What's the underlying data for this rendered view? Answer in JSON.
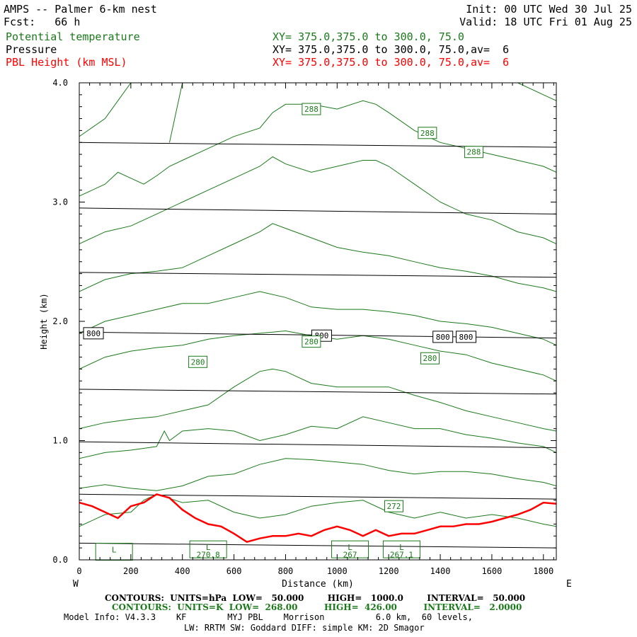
{
  "header": {
    "title_left": "AMPS -- Palmer 6-km nest",
    "fcst": "Fcst:   66 h",
    "init": "Init: 00 UTC Wed 30 Jul 25",
    "valid": "Valid: 18 UTC Fri 01 Aug 25",
    "field1_name": "Potential temperature",
    "field1_xy": "XY= 375.0,375.0 to 300.0, 75.0",
    "field2_name": "Pressure",
    "field2_xy": "XY= 375.0,375.0 to 300.0, 75.0,av=  6",
    "field3_name": "PBL Height (km MSL)",
    "field3_xy": "XY= 375.0,375.0 to 300.0, 75.0,av=  6"
  },
  "colors": {
    "theta": "#1a7a1a",
    "pressure": "#000000",
    "pbl": "#ff0000"
  },
  "chart_data": {
    "type": "line",
    "xlabel": "Distance (km)",
    "ylabel": "Height (km)",
    "xlim": [
      0,
      1850
    ],
    "ylim": [
      0,
      4.0
    ],
    "x_ticks": [
      "0",
      "200",
      "400",
      "600",
      "800",
      "1000",
      "1200",
      "1400",
      "1600",
      "1800"
    ],
    "y_ticks": [
      "0.0",
      "1.0",
      "2.0",
      "3.0",
      "4.0"
    ],
    "x_tick_values": [
      0,
      200,
      400,
      600,
      800,
      1000,
      1200,
      1400,
      1600,
      1800
    ],
    "y_tick_values": [
      0,
      1,
      2,
      3,
      4
    ],
    "left_end": "W",
    "right_end": "E",
    "pressure_lines": [
      {
        "x": [
          0,
          1850
        ],
        "y": [
          3.5,
          3.46
        ]
      },
      {
        "x": [
          0,
          1850
        ],
        "y": [
          2.95,
          2.9
        ]
      },
      {
        "x": [
          0,
          1850
        ],
        "y": [
          2.41,
          2.37
        ]
      },
      {
        "x": [
          0,
          1850
        ],
        "y": [
          1.91,
          1.86
        ]
      },
      {
        "x": [
          0,
          1850
        ],
        "y": [
          1.43,
          1.39
        ]
      },
      {
        "x": [
          0,
          1850
        ],
        "y": [
          0.99,
          0.94
        ]
      },
      {
        "x": [
          0,
          1850
        ],
        "y": [
          0.55,
          0.51
        ]
      },
      {
        "x": [
          0,
          1850
        ],
        "y": [
          0.14,
          0.1
        ]
      }
    ],
    "theta_lines": [
      {
        "x": [
          0,
          100,
          200,
          250,
          300,
          400,
          500,
          600,
          700,
          800,
          900,
          1000,
          1100,
          1200,
          1300,
          1400,
          1500,
          1600,
          1700,
          1800,
          1850
        ],
        "y": [
          0.28,
          0.38,
          0.4,
          0.5,
          0.55,
          0.48,
          0.5,
          0.4,
          0.35,
          0.38,
          0.45,
          0.48,
          0.5,
          0.4,
          0.35,
          0.4,
          0.35,
          0.38,
          0.35,
          0.3,
          0.28
        ]
      },
      {
        "x": [
          0,
          100,
          200,
          300,
          400,
          500,
          600,
          700,
          800,
          900,
          1000,
          1100,
          1200,
          1300,
          1400,
          1500,
          1600,
          1700,
          1800,
          1850
        ],
        "y": [
          0.6,
          0.63,
          0.6,
          0.58,
          0.62,
          0.7,
          0.72,
          0.8,
          0.85,
          0.84,
          0.82,
          0.8,
          0.75,
          0.72,
          0.74,
          0.74,
          0.72,
          0.68,
          0.65,
          0.62
        ]
      },
      {
        "x": [
          0,
          100,
          200,
          300,
          330,
          350,
          400,
          500,
          600,
          700,
          800,
          900,
          1000,
          1100,
          1200,
          1300,
          1400,
          1500,
          1600,
          1700,
          1800,
          1850
        ],
        "y": [
          0.85,
          0.9,
          0.92,
          0.95,
          1.08,
          1.0,
          1.08,
          1.1,
          1.08,
          1.0,
          1.05,
          1.12,
          1.1,
          1.2,
          1.15,
          1.1,
          1.1,
          1.05,
          1.02,
          0.98,
          0.95,
          0.9
        ]
      },
      {
        "x": [
          0,
          100,
          200,
          300,
          400,
          500,
          600,
          700,
          750,
          800,
          900,
          1000,
          1100,
          1200,
          1300,
          1400,
          1500,
          1600,
          1700,
          1800,
          1850
        ],
        "y": [
          1.1,
          1.15,
          1.18,
          1.2,
          1.25,
          1.3,
          1.45,
          1.58,
          1.6,
          1.58,
          1.48,
          1.45,
          1.45,
          1.45,
          1.38,
          1.32,
          1.25,
          1.2,
          1.15,
          1.1,
          1.08
        ]
      },
      {
        "x": [
          0,
          100,
          200,
          300,
          400,
          500,
          600,
          700,
          800,
          900,
          1000,
          1100,
          1200,
          1300,
          1400,
          1500,
          1600,
          1700,
          1800,
          1850
        ],
        "y": [
          1.6,
          1.7,
          1.75,
          1.78,
          1.8,
          1.85,
          1.88,
          1.9,
          1.92,
          1.88,
          1.85,
          1.88,
          1.85,
          1.8,
          1.75,
          1.72,
          1.65,
          1.6,
          1.55,
          1.5
        ]
      },
      {
        "x": [
          0,
          100,
          200,
          300,
          400,
          500,
          600,
          700,
          800,
          900,
          1000,
          1100,
          1200,
          1300,
          1400,
          1500,
          1600,
          1700,
          1800,
          1850
        ],
        "y": [
          1.9,
          2.0,
          2.05,
          2.1,
          2.15,
          2.15,
          2.2,
          2.25,
          2.2,
          2.12,
          2.1,
          2.1,
          2.08,
          2.05,
          2.0,
          1.98,
          1.95,
          1.9,
          1.85,
          1.8
        ]
      },
      {
        "x": [
          0,
          100,
          200,
          300,
          400,
          500,
          600,
          700,
          750,
          800,
          900,
          1000,
          1100,
          1200,
          1300,
          1400,
          1500,
          1600,
          1700,
          1800,
          1850
        ],
        "y": [
          2.25,
          2.35,
          2.4,
          2.42,
          2.45,
          2.55,
          2.65,
          2.75,
          2.82,
          2.78,
          2.7,
          2.62,
          2.58,
          2.55,
          2.5,
          2.45,
          2.42,
          2.38,
          2.32,
          2.28,
          2.25
        ]
      },
      {
        "x": [
          0,
          100,
          200,
          300,
          400,
          500,
          600,
          700,
          750,
          800,
          900,
          1000,
          1100,
          1150,
          1200,
          1300,
          1400,
          1500,
          1600,
          1700,
          1800,
          1850
        ],
        "y": [
          2.65,
          2.75,
          2.8,
          2.9,
          3.0,
          3.1,
          3.2,
          3.3,
          3.38,
          3.32,
          3.25,
          3.3,
          3.35,
          3.35,
          3.3,
          3.15,
          3.0,
          2.9,
          2.85,
          2.75,
          2.7,
          2.65
        ]
      },
      {
        "x": [
          0,
          100,
          150,
          200,
          250,
          300,
          350,
          400,
          500,
          600,
          700,
          750,
          800,
          900,
          1000,
          1100,
          1150,
          1200,
          1300,
          1400,
          1500,
          1600,
          1700,
          1800,
          1850
        ],
        "y": [
          3.05,
          3.15,
          3.25,
          3.2,
          3.15,
          3.22,
          3.3,
          3.35,
          3.45,
          3.55,
          3.62,
          3.75,
          3.82,
          3.82,
          3.78,
          3.85,
          3.82,
          3.75,
          3.6,
          3.5,
          3.45,
          3.4,
          3.35,
          3.3,
          3.25
        ]
      },
      {
        "x": [
          0,
          100,
          150,
          200
        ],
        "y": [
          3.55,
          3.7,
          3.85,
          4.0
        ]
      },
      {
        "x": [
          350,
          370,
          400
        ],
        "y": [
          3.5,
          3.7,
          4.0
        ]
      },
      {
        "x": [
          1700,
          1750,
          1800,
          1850
        ],
        "y": [
          4.0,
          3.95,
          3.9,
          3.85
        ]
      }
    ],
    "pressure_labels": [
      {
        "text": "800",
        "x": 55,
        "y": 1.9
      },
      {
        "text": "800",
        "x": 940,
        "y": 1.88
      },
      {
        "text": "800",
        "x": 1410,
        "y": 1.87
      },
      {
        "text": "800",
        "x": 1500,
        "y": 1.87
      }
    ],
    "theta_labels": [
      {
        "text": "288",
        "x": 900,
        "y": 3.78
      },
      {
        "text": "288",
        "x": 1350,
        "y": 3.58
      },
      {
        "text": "288",
        "x": 1530,
        "y": 3.42
      },
      {
        "text": "280",
        "x": 460,
        "y": 1.66
      },
      {
        "text": "280",
        "x": 900,
        "y": 1.83
      },
      {
        "text": "280",
        "x": 1360,
        "y": 1.69
      },
      {
        "text": "272",
        "x": 1220,
        "y": 0.45
      }
    ],
    "low_labels": [
      {
        "text": "L",
        "x": 135,
        "y": 0.08
      },
      {
        "text": "L",
        "x": 500,
        "y": 0.1
      },
      {
        "text": "L",
        "x": 1050,
        "y": 0.1
      },
      {
        "text": "L",
        "x": 1250,
        "y": 0.1
      }
    ],
    "low_values": [
      {
        "text": "270.8",
        "x": 500,
        "y": 0.02
      },
      {
        "text": "267",
        "x": 1050,
        "y": 0.02
      },
      {
        "text": "267.1",
        "x": 1250,
        "y": 0.02
      }
    ],
    "pbl_height": {
      "x": [
        0,
        50,
        100,
        150,
        200,
        250,
        300,
        350,
        400,
        450,
        500,
        550,
        600,
        650,
        700,
        750,
        800,
        850,
        900,
        950,
        1000,
        1050,
        1100,
        1150,
        1200,
        1250,
        1300,
        1350,
        1400,
        1450,
        1500,
        1550,
        1600,
        1650,
        1700,
        1750,
        1800,
        1850
      ],
      "y": [
        0.48,
        0.45,
        0.4,
        0.35,
        0.45,
        0.48,
        0.55,
        0.52,
        0.42,
        0.35,
        0.3,
        0.28,
        0.22,
        0.15,
        0.18,
        0.2,
        0.2,
        0.22,
        0.2,
        0.25,
        0.28,
        0.25,
        0.2,
        0.25,
        0.2,
        0.22,
        0.22,
        0.25,
        0.28,
        0.28,
        0.3,
        0.3,
        0.32,
        0.35,
        0.38,
        0.42,
        0.48,
        0.47
      ]
    }
  },
  "footer": {
    "line1": "CONTOURS:  UNITS=hPa  LOW=   50.000        HIGH=   1000.0        INTERVAL=   50.000",
    "line2": "CONTOURS:  UNITS=K  LOW=  268.00         HIGH=  426.00         INTERVAL=   2.0000",
    "line3": "Model Info: V4.3.3    KF        MYJ PBL    Morrison          6.0 km,  60 levels,",
    "line4": "LW: RRTM SW: Goddard DIFF: simple KM: 2D Smagor"
  }
}
